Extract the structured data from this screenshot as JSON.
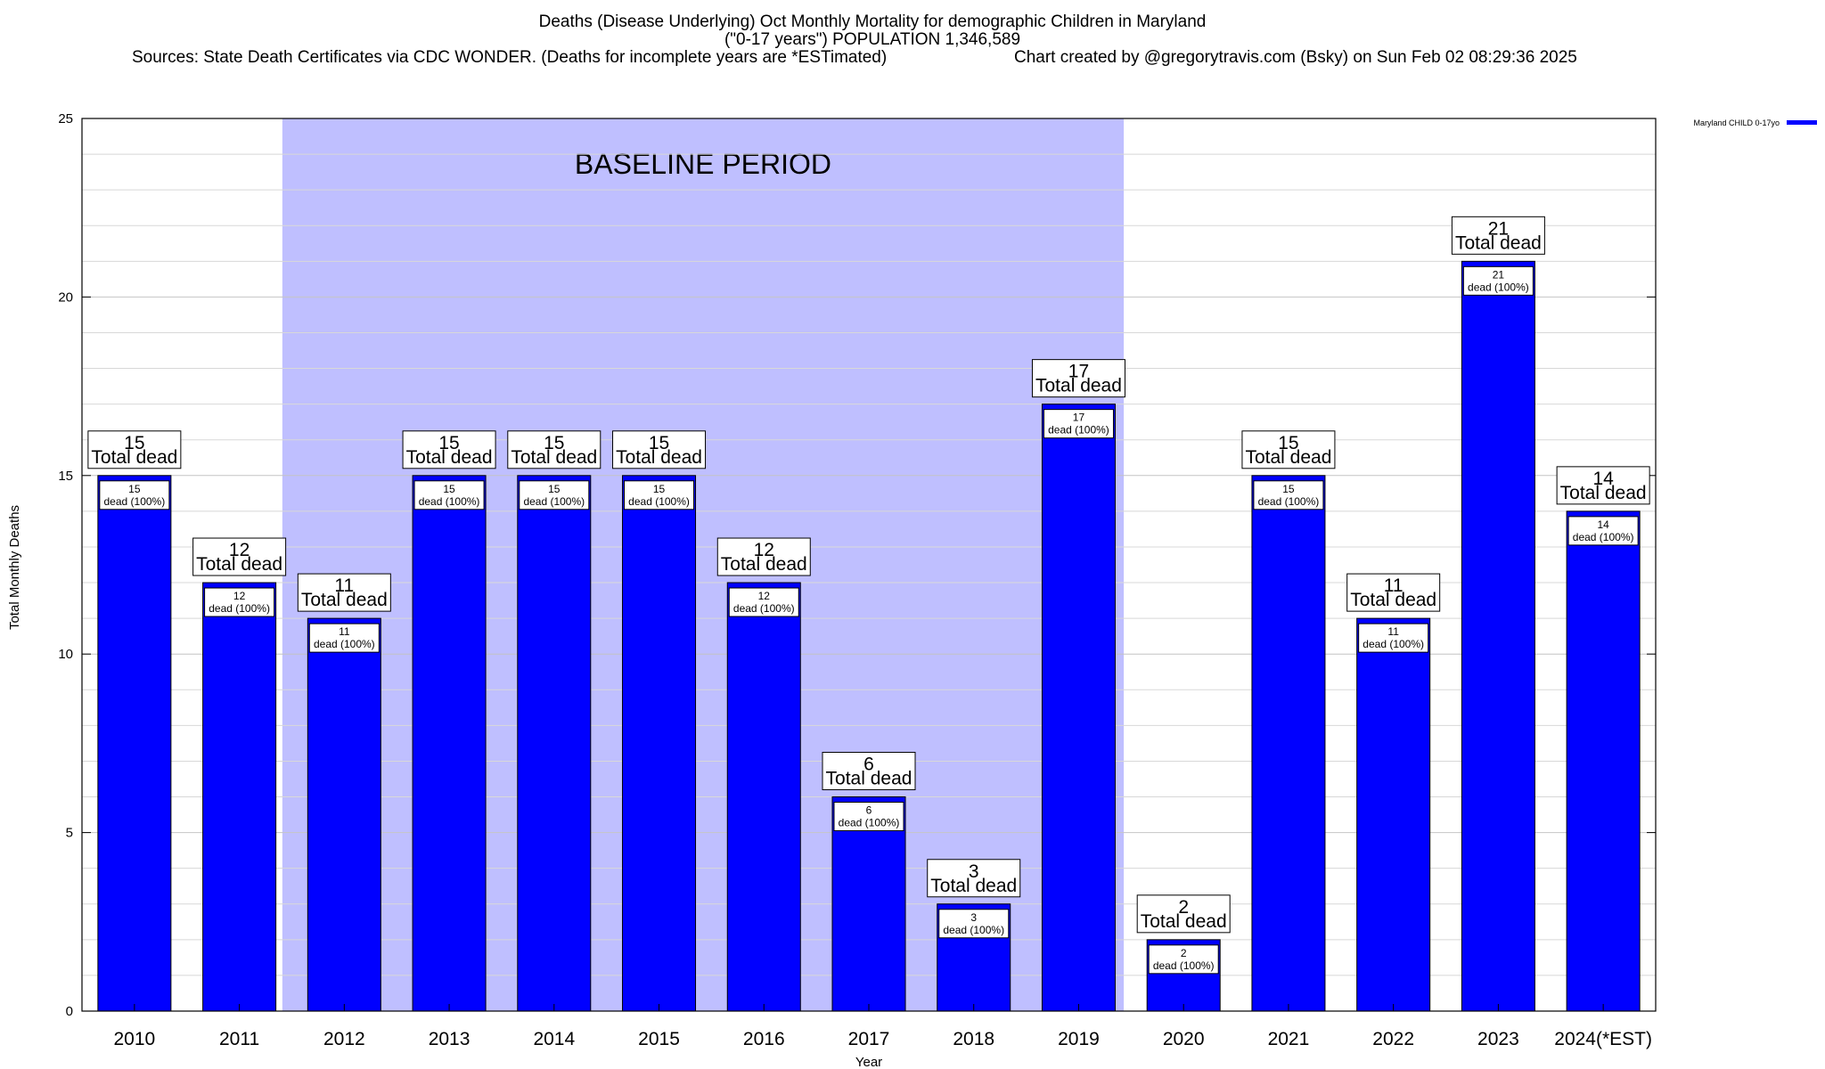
{
  "chart_data": {
    "type": "bar",
    "title": "Deaths (Disease Underlying) Oct Monthly Mortality for demographic Children in Maryland",
    "subtitle": "(\"0-17 years\") POPULATION 1,346,589",
    "sources": "Sources: State Death Certificates via CDC WONDER. (Deaths for incomplete years are *ESTimated)",
    "credit": "Chart created by @gregorytravis.com (Bsky) on Sun Feb 02 08:29:36 2025",
    "xlabel": "Year",
    "ylabel": "Total Monthly Deaths",
    "ylim": [
      0,
      25
    ],
    "yticks": [
      0,
      5,
      10,
      15,
      20,
      25
    ],
    "grid": true,
    "legend_position": "top-right",
    "categories": [
      "2010",
      "2011",
      "2012",
      "2013",
      "2014",
      "2015",
      "2016",
      "2017",
      "2018",
      "2019",
      "2020",
      "2021",
      "2022",
      "2023",
      "2024(*EST)"
    ],
    "series": [
      {
        "name": "Maryland CHILD 0-17yo",
        "color": "#0000ff",
        "values": [
          15,
          12,
          11,
          15,
          15,
          15,
          12,
          6,
          3,
          17,
          2,
          15,
          11,
          21,
          14
        ]
      }
    ],
    "total_label_text": "Total dead",
    "inner_label_text": "dead (100%)",
    "baseline": {
      "label": "BASELINE PERIOD",
      "start": "2012",
      "end": "2019",
      "color": "#bfbfff"
    }
  }
}
